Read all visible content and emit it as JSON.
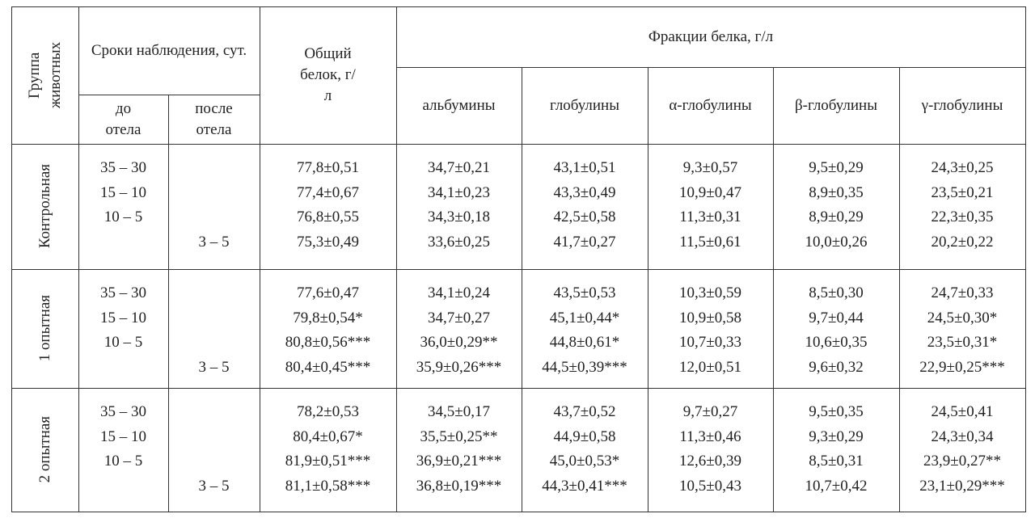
{
  "header": {
    "group": "Группа животных",
    "terms": "Сроки наблюдения, сут.",
    "before": "до отела",
    "after": "после отела",
    "total": "Общий белок, г/л",
    "fractions": "Фракции белка, г/л",
    "columns": [
      "альбумины",
      "глобулины",
      "α-глобулины",
      "β-глобулины",
      "γ-глобулины"
    ]
  },
  "groups": [
    {
      "name": "Контрольная",
      "before": [
        "35 – 30",
        "15 – 10",
        "10 – 5"
      ],
      "after": "3 – 5",
      "values": [
        [
          "77,8±0,51",
          "77,4±0,67",
          "76,8±0,55",
          "75,3±0,49"
        ],
        [
          "34,7±0,21",
          "34,1±0,23",
          "34,3±0,18",
          "33,6±0,25"
        ],
        [
          "43,1±0,51",
          "43,3±0,49",
          "42,5±0,58",
          "41,7±0,27"
        ],
        [
          "9,3±0,57",
          "10,9±0,47",
          "11,3±0,31",
          "11,5±0,61"
        ],
        [
          "9,5±0,29",
          "8,9±0,35",
          "8,9±0,29",
          "10,0±0,26"
        ],
        [
          "24,3±0,25",
          "23,5±0,21",
          "22,3±0,35",
          "20,2±0,22"
        ]
      ]
    },
    {
      "name": "1 опытная",
      "before": [
        "35 – 30",
        "15 – 10",
        "10 – 5"
      ],
      "after": "3 – 5",
      "values": [
        [
          "77,6±0,47",
          "79,8±0,54*",
          "80,8±0,56***",
          "80,4±0,45***"
        ],
        [
          "34,1±0,24",
          "34,7±0,27",
          "36,0±0,29**",
          "35,9±0,26***"
        ],
        [
          "43,5±0,53",
          "45,1±0,44*",
          "44,8±0,61*",
          "44,5±0,39***"
        ],
        [
          "10,3±0,59",
          "10,9±0,58",
          "10,7±0,33",
          "12,0±0,51"
        ],
        [
          "8,5±0,30",
          "9,7±0,44",
          "10,6±0,35",
          "9,6±0,32"
        ],
        [
          "24,7±0,33",
          "24,5±0,30*",
          "23,5±0,31*",
          "22,9±0,25***"
        ]
      ]
    },
    {
      "name": "2 опытная",
      "before": [
        "35 – 30",
        "15 – 10",
        "10 – 5"
      ],
      "after": "3 – 5",
      "values": [
        [
          "78,2±0,53",
          "80,4±0,67*",
          "81,9±0,51***",
          "81,1±0,58***"
        ],
        [
          "34,5±0,17",
          "35,5±0,25**",
          "36,9±0,21***",
          "36,8±0,19***"
        ],
        [
          "43,7±0,52",
          "44,9±0,58",
          "45,0±0,53*",
          "44,3±0,41***"
        ],
        [
          "9,7±0,27",
          "11,3±0,46",
          "12,6±0,39",
          "10,5±0,43"
        ],
        [
          "9,5±0,35",
          "9,3±0,29",
          "8,5±0,31",
          "10,7±0,42"
        ],
        [
          "24,5±0,41",
          "24,3±0,34",
          "23,9±0,27**",
          "23,1±0,29***"
        ]
      ]
    }
  ]
}
